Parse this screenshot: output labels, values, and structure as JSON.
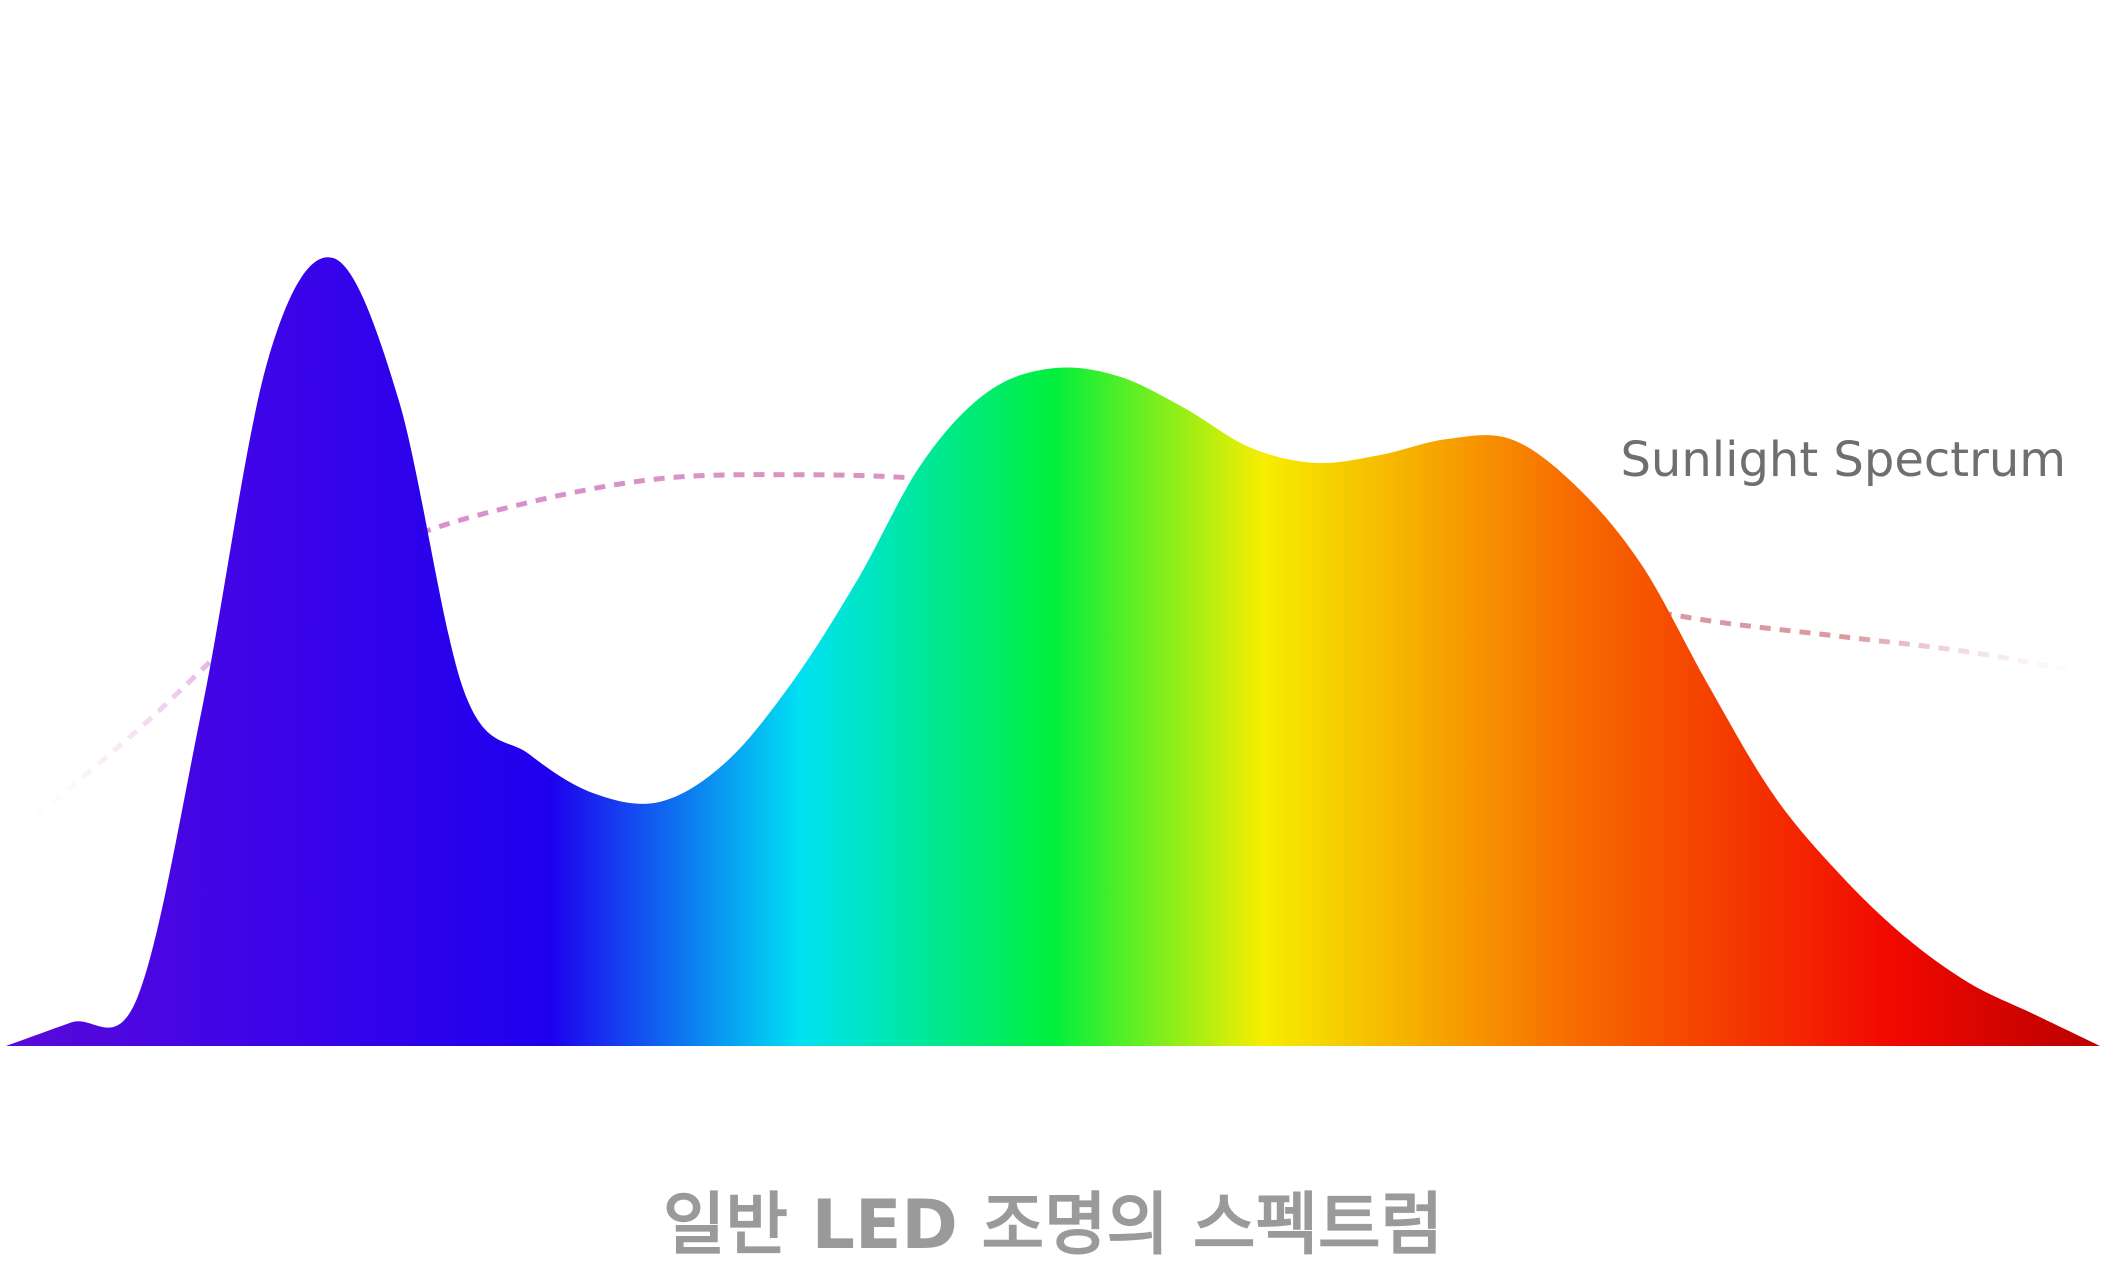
{
  "caption": "일반 LED 조명의 스펙트럼",
  "chart_data": {
    "type": "area",
    "title": "일반 LED 조명의 스펙트럼",
    "xlabel": "",
    "ylabel": "",
    "grid": false,
    "x_unit": "nm",
    "xlim": [
      380,
      780
    ],
    "ylim": [
      0,
      1
    ],
    "series": [
      {
        "style": "dashed",
        "values": [
          0.26,
          0.4,
          0.55,
          0.64,
          0.69,
          0.72,
          0.725,
          0.72,
          0.7,
          0.67,
          0.63,
          0.6,
          0.57,
          0.54,
          0.52,
          0.5,
          0.47
        ]
      },
      {
        "style": "filled-gradient",
        "values": [
          0.0,
          0.03,
          0.06,
          0.43,
          0.87,
          1.0,
          0.82,
          0.45,
          0.37,
          0.32,
          0.31,
          0.36,
          0.46,
          0.59,
          0.74,
          0.83,
          0.86,
          0.85,
          0.81,
          0.76,
          0.74,
          0.75,
          0.77,
          0.77,
          0.71,
          0.61,
          0.46,
          0.32,
          0.22,
          0.14,
          0.08,
          0.04,
          0.0
        ]
      }
    ],
    "annotations": [
      {
        "text": "Sunlight Spectrum",
        "target": "dashed series"
      }
    ],
    "colors": {
      "sun_dash_start": "#d98fd2",
      "sun_dash_end": "#d99aa0",
      "gradient_stops": [
        {
          "offset": 0.0,
          "color": "#5a0ad8"
        },
        {
          "offset": 0.12,
          "color": "#3e04e8"
        },
        {
          "offset": 0.26,
          "color": "#1e00ee"
        },
        {
          "offset": 0.38,
          "color": "#00e1f3"
        },
        {
          "offset": 0.5,
          "color": "#00ef3c"
        },
        {
          "offset": 0.6,
          "color": "#f6ee00"
        },
        {
          "offset": 0.75,
          "color": "#f76a00"
        },
        {
          "offset": 0.9,
          "color": "#f20800"
        },
        {
          "offset": 1.0,
          "color": "#b90000"
        }
      ]
    }
  }
}
